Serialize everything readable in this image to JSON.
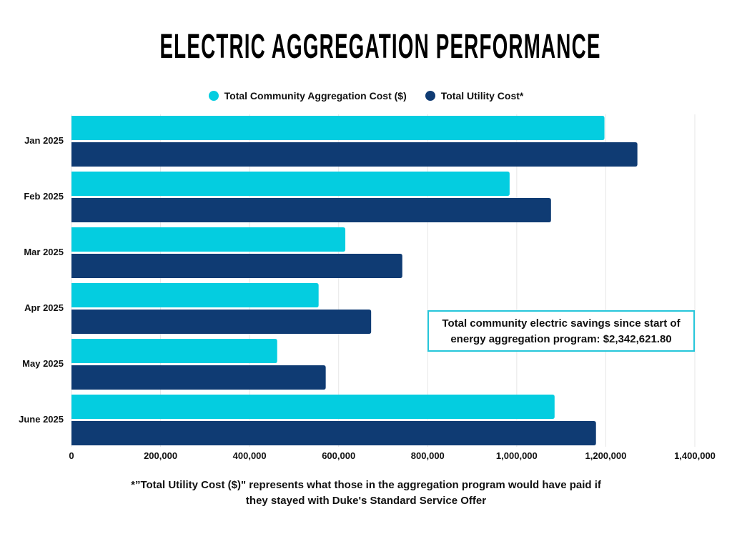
{
  "chart_data": {
    "type": "bar",
    "orientation": "horizontal",
    "title": "ELECTRIC AGGREGATION PERFORMANCE",
    "categories": [
      "Jan 2025",
      "Feb 2025",
      "Mar 2025",
      "Apr 2025",
      "May 2025",
      "June 2025"
    ],
    "series": [
      {
        "name": "Total Community Aggregation Cost ($)",
        "color": "#04cde0",
        "values": [
          1197000,
          984000,
          615000,
          555000,
          462000,
          1085000
        ]
      },
      {
        "name": "Total Utility Cost*",
        "color": "#0f3b73",
        "values": [
          1271000,
          1077000,
          743000,
          673000,
          571000,
          1178000
        ]
      }
    ],
    "xlim": [
      0,
      1400000
    ],
    "x_ticks": [
      "0",
      "200,000",
      "400,000",
      "600,000",
      "800,000",
      "1,000,000",
      "1,200,000",
      "1,400,000"
    ],
    "x_tick_values": [
      0,
      200000,
      400000,
      600000,
      800000,
      1000000,
      1200000,
      1400000
    ],
    "grid": true,
    "legend_position": "top",
    "annotation": "Total community electric savings since start of energy aggregation program: $2,342,621.80"
  },
  "annotation_lines": [
    "Total community electric savings since start of",
    "energy aggregation program: $2,342,621.80"
  ],
  "footnote_lines": [
    "*”Total Utility Cost ($)\" represents what those in the aggregation program would have paid if",
    "they stayed with Duke's Standard Service Offer"
  ],
  "grid_color": "#e6e6e6",
  "annotation_border_color": "#26c6da"
}
